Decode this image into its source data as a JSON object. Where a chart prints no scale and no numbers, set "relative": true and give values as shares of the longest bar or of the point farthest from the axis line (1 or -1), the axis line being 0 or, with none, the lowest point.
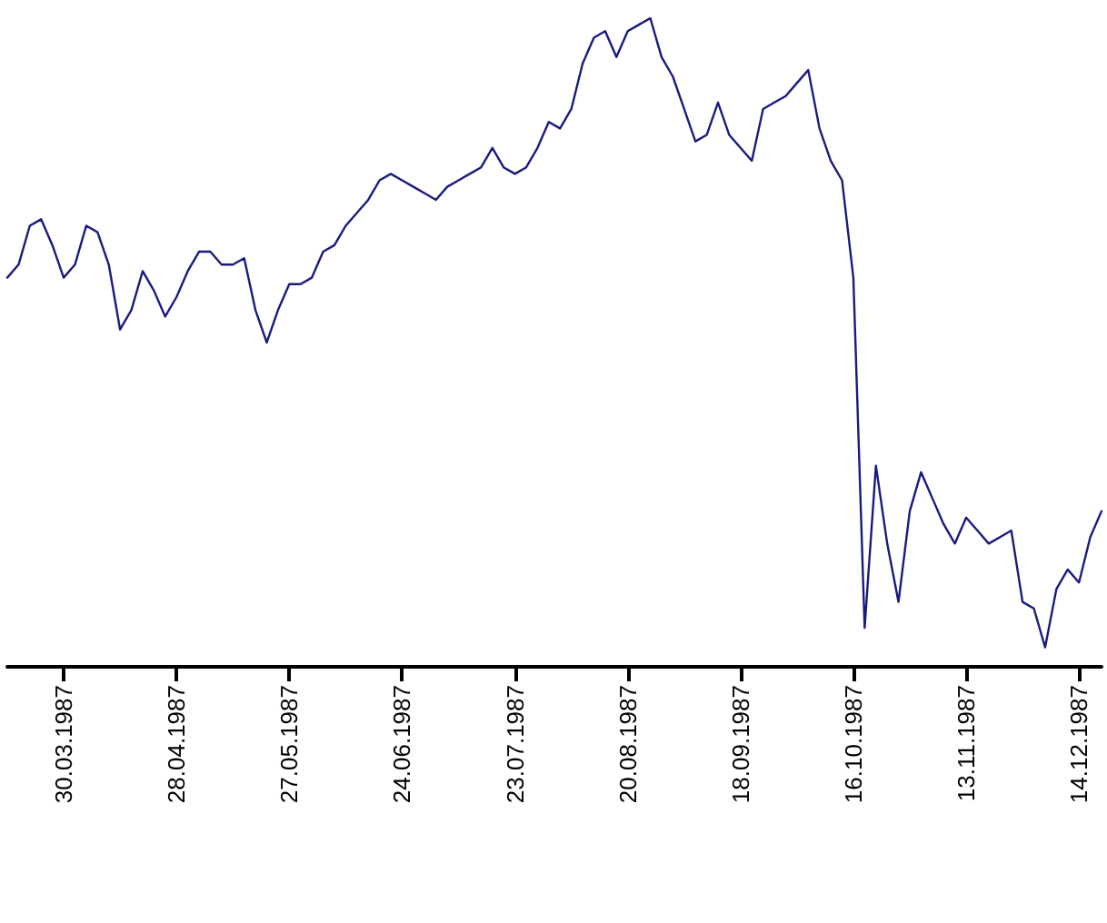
{
  "chart_data": {
    "type": "line",
    "relative": true,
    "grid": false,
    "marker": "none",
    "line_style": "solid",
    "categories": [
      null,
      null,
      null,
      null,
      null,
      "30.03.1987",
      null,
      null,
      null,
      null,
      null,
      null,
      null,
      null,
      null,
      "28.04.1987",
      null,
      null,
      null,
      null,
      null,
      null,
      null,
      null,
      null,
      "27.05.1987",
      null,
      null,
      null,
      null,
      null,
      null,
      null,
      null,
      null,
      "24.06.1987",
      null,
      null,
      null,
      null,
      null,
      null,
      null,
      null,
      null,
      "23.07.1987",
      null,
      null,
      null,
      null,
      null,
      null,
      null,
      null,
      null,
      "20.08.1987",
      null,
      null,
      null,
      null,
      null,
      null,
      null,
      null,
      null,
      "18.09.1987",
      null,
      null,
      null,
      null,
      null,
      null,
      null,
      null,
      null,
      "16.10.1987",
      null,
      null,
      null,
      null,
      null,
      null,
      null,
      null,
      null,
      "13.11.1987",
      null,
      null,
      null,
      null,
      null,
      null,
      null,
      null,
      null,
      "14.12.1987",
      null,
      null
    ],
    "series": [
      {
        "color": "#1a1a80",
        "values": [
          0.6,
          0.62,
          0.68,
          0.69,
          0.65,
          0.6,
          0.62,
          0.68,
          0.67,
          0.62,
          0.52,
          0.55,
          0.61,
          0.58,
          0.54,
          0.57,
          0.61,
          0.64,
          0.64,
          0.62,
          0.62,
          0.63,
          0.55,
          0.5,
          0.55,
          0.59,
          0.59,
          0.6,
          0.64,
          0.65,
          0.68,
          0.7,
          0.72,
          0.75,
          0.76,
          0.75,
          0.74,
          0.73,
          0.72,
          0.74,
          0.75,
          0.76,
          0.77,
          0.8,
          0.77,
          0.76,
          0.77,
          0.8,
          0.84,
          0.83,
          0.86,
          0.93,
          0.97,
          0.98,
          0.94,
          0.98,
          0.99,
          1,
          0.94,
          0.91,
          0.86,
          0.81,
          0.82,
          0.87,
          0.82,
          0.8,
          0.78,
          0.86,
          0.87,
          0.88,
          0.9,
          0.92,
          0.83,
          0.78,
          0.75,
          0.6,
          0.06,
          0.31,
          0.19,
          0.1,
          0.24,
          0.3,
          0.26,
          0.22,
          0.19,
          0.23,
          0.21,
          0.19,
          0.2,
          0.21,
          0.1,
          0.09,
          0.03,
          0.12,
          0.15,
          0.13,
          0.2,
          0.24
        ]
      }
    ]
  }
}
